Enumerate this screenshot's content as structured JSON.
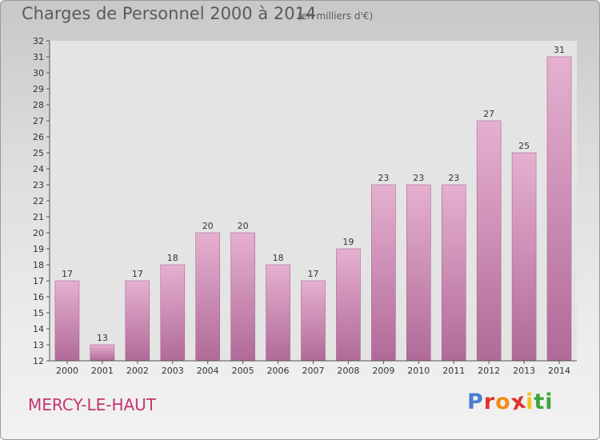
{
  "header": {
    "title": "Charges de Personnel 2000 à 2014",
    "subtitle": "(en milliers d'€)"
  },
  "footer": {
    "commune": "MERCY-LE-HAUT",
    "logo_text": "Proxiti"
  },
  "colors": {
    "bar_top": "#e6b0d0",
    "bar_bottom": "#b06a98",
    "commune_text": "#c6356e",
    "logo": [
      "#4a7fd0",
      "#e0342c",
      "#f08c1c",
      "#e0342c",
      "#f2c41c",
      "#3aa63a",
      "#3aa63a"
    ]
  },
  "chart_data": {
    "type": "bar",
    "title": "Charges de Personnel 2000 à 2014",
    "subtitle": "(en milliers d'€)",
    "xlabel": "",
    "ylabel": "",
    "categories": [
      "2000",
      "2001",
      "2002",
      "2003",
      "2004",
      "2005",
      "2006",
      "2007",
      "2008",
      "2009",
      "2010",
      "2011",
      "2012",
      "2013",
      "2014"
    ],
    "values": [
      17,
      13,
      17,
      18,
      20,
      20,
      18,
      17,
      19,
      23,
      23,
      23,
      27,
      25,
      31
    ],
    "ylim": [
      12,
      32
    ],
    "yticks": [
      12,
      13,
      14,
      15,
      16,
      17,
      18,
      19,
      20,
      21,
      22,
      23,
      24,
      25,
      26,
      27,
      28,
      29,
      30,
      31,
      32
    ],
    "grid": false,
    "legend": "none"
  }
}
